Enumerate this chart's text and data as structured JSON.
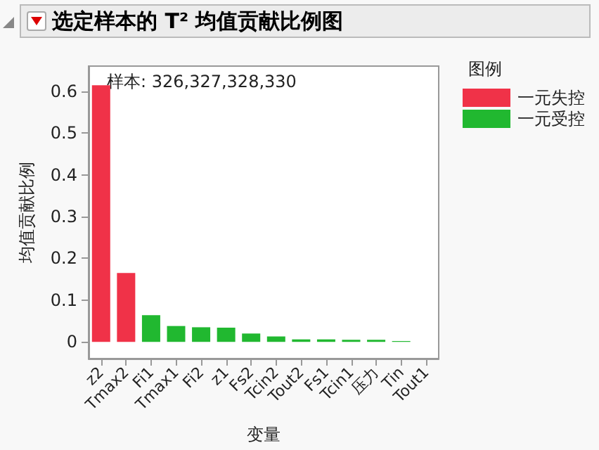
{
  "chart_data": {
    "type": "bar",
    "title": "选定样本的 T² 均值贡献比例图",
    "xlabel": "变量",
    "ylabel": "均值贡献比例",
    "legend_title": "图例",
    "legend": "right",
    "grid": false,
    "annotations": [
      "样本: 326,327,328,330"
    ],
    "categories": [
      "z2",
      "Tmax2",
      "Fi1",
      "Tmax1",
      "Fi2",
      "z1",
      "Fs2",
      "Tcin2",
      "Tout2",
      "Fs1",
      "Tcin1",
      "压力",
      "Tin",
      "Tout1"
    ],
    "series": [
      {
        "name": "一元失控",
        "color": "#f03248",
        "values": [
          0.614,
          0.165,
          null,
          null,
          null,
          null,
          null,
          null,
          null,
          null,
          null,
          null,
          null,
          null
        ]
      },
      {
        "name": "一元受控",
        "color": "#21b830",
        "values": [
          null,
          null,
          0.064,
          0.038,
          0.035,
          0.034,
          0.02,
          0.013,
          0.006,
          0.006,
          0.005,
          0.005,
          0.002,
          0
        ]
      }
    ],
    "ylim": [
      -0.04,
      0.66
    ],
    "yticks": [
      0,
      0.1,
      0.2,
      0.3,
      0.4,
      0.5,
      0.6
    ]
  }
}
